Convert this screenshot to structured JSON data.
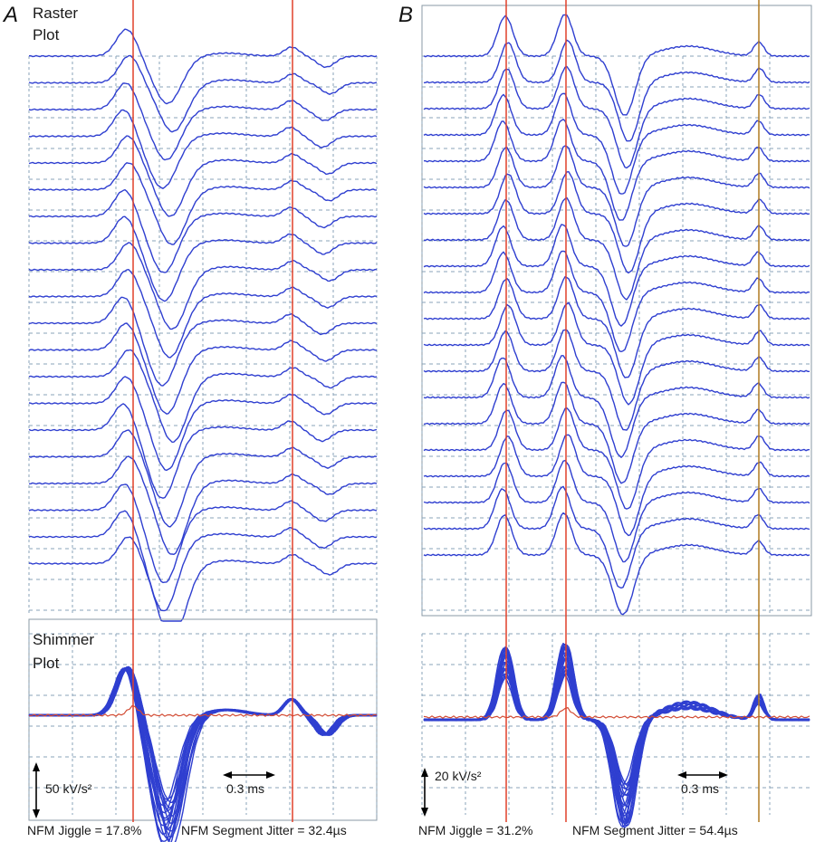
{
  "figure": {
    "panels": [
      {
        "id": "A",
        "letter": "A",
        "raster_title_line1": "Raster",
        "raster_title_line2": "Plot",
        "shimmer_title_line1": "Shimmer",
        "shimmer_title_line2": "Plot",
        "amplitude_scale": "50 kV/s²",
        "time_scale": "0.3 ms",
        "jiggle_label": "NFM Jiggle = 17.8%",
        "jitter_label": "NFM Segment Jitter = 32.4µs"
      },
      {
        "id": "B",
        "letter": "B",
        "amplitude_scale": "20 kV/s²",
        "time_scale": "0.3 ms",
        "jiggle_label": "NFM Jiggle = 31.2%",
        "jitter_label": "NFM Segment Jitter = 54.4µs"
      }
    ]
  },
  "chart_data": [
    {
      "type": "line",
      "panel": "A",
      "title": "Raster Plot",
      "trace_count": 20,
      "x_unit": "ms",
      "time_scale_bar_ms": 0.3,
      "markers_ms": [
        0.0,
        0.94
      ],
      "waveform_peaks_ms": [
        0.0,
        0.28,
        0.94,
        1.14
      ],
      "amplitude_scale": "50 kV/s²"
    },
    {
      "type": "line",
      "panel": "A",
      "title": "Shimmer Plot",
      "trace_count": 20,
      "amplitude_scale": "50 kV/s²",
      "time_scale": "0.3 ms",
      "nfm_jiggle_percent": 17.8,
      "nfm_segment_jitter_us": 32.4
    },
    {
      "type": "line",
      "panel": "B",
      "title": "Raster Plot",
      "trace_count": 20,
      "x_unit": "ms",
      "time_scale_bar_ms": 0.3,
      "markers_ms": [
        0.0,
        0.3,
        1.28
      ],
      "amplitude_scale": "20 kV/s²"
    },
    {
      "type": "line",
      "panel": "B",
      "title": "Shimmer Plot",
      "trace_count": 20,
      "amplitude_scale": "20 kV/s²",
      "time_scale": "0.3 ms",
      "nfm_jiggle_percent": 31.2,
      "nfm_segment_jitter_us": 54.4
    }
  ]
}
